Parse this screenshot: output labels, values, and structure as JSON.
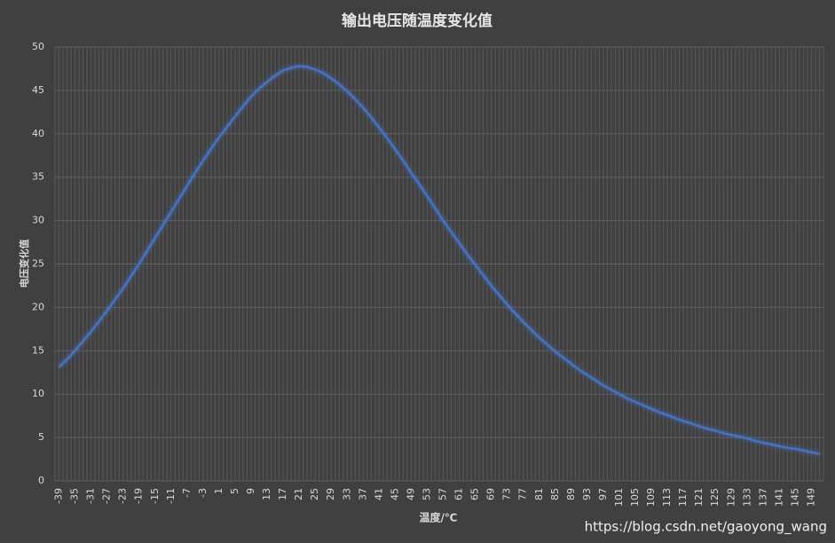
{
  "chart_data": {
    "type": "line",
    "title": "输出电压随温度变化值",
    "x_label": "温度/℃",
    "y_label": "电压变化值",
    "watermark": "https://blog.csdn.net/gaoyong_wang",
    "categories": [
      "-39",
      null,
      "-35",
      null,
      "-31",
      null,
      "-27",
      null,
      "-23",
      null,
      "-19",
      null,
      "-15",
      null,
      "-11",
      null,
      "-7",
      null,
      "-3",
      null,
      "1",
      null,
      "5",
      null,
      "9",
      null,
      "13",
      null,
      "17",
      null,
      "21",
      null,
      "25",
      null,
      "29",
      null,
      "33",
      null,
      "37",
      null,
      "41",
      null,
      "45",
      null,
      "49",
      null,
      "53",
      null,
      "57",
      null,
      "61",
      null,
      "65",
      null,
      "69",
      null,
      "73",
      null,
      "77",
      null,
      "81",
      null,
      "85",
      null,
      "89",
      null,
      "93",
      null,
      "97",
      null,
      "101",
      null,
      "105",
      null,
      "109",
      null,
      "113",
      null,
      "117",
      null,
      "121",
      null,
      "125",
      null,
      "129",
      null,
      "133",
      null,
      "137",
      null,
      "141",
      null,
      "145",
      null,
      "149",
      null
    ],
    "series": [
      {
        "name": "电压变化值",
        "color": "#4472c4",
        "values": [
          13.1,
          14.0,
          15.0,
          16.1,
          17.2,
          18.4,
          19.6,
          20.9,
          22.2,
          23.6,
          25.0,
          26.5,
          28.0,
          29.5,
          31.0,
          32.5,
          34.0,
          35.5,
          36.9,
          38.3,
          39.6,
          40.8,
          42.0,
          43.2,
          44.3,
          45.2,
          46.0,
          46.7,
          47.3,
          47.6,
          47.8,
          47.7,
          47.4,
          47.0,
          46.4,
          45.7,
          44.9,
          44.0,
          43.0,
          41.9,
          40.7,
          39.5,
          38.2,
          36.9,
          35.5,
          34.2,
          32.8,
          31.4,
          30.0,
          28.7,
          27.4,
          26.1,
          24.9,
          23.7,
          22.5,
          21.4,
          20.3,
          19.3,
          18.3,
          17.4,
          16.5,
          15.7,
          14.9,
          14.2,
          13.5,
          12.8,
          12.2,
          11.6,
          11.0,
          10.5,
          10.0,
          9.5,
          9.1,
          8.7,
          8.3,
          7.9,
          7.6,
          7.2,
          6.9,
          6.6,
          6.3,
          6.0,
          5.8,
          5.5,
          5.3,
          5.1,
          4.9,
          4.6,
          4.4,
          4.2,
          4.0,
          3.8,
          3.7,
          3.5,
          3.3,
          3.1
        ]
      }
    ],
    "ylim": [
      0,
      50
    ],
    "yticks": [
      0,
      5,
      10,
      15,
      20,
      25,
      30,
      35,
      40,
      45,
      50
    ],
    "grid": true
  }
}
